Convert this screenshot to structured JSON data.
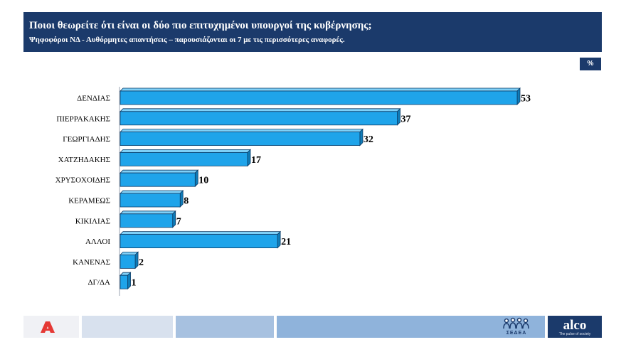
{
  "header": {
    "title": "Ποιοι θεωρείτε ότι είναι οι δύο πιο επιτυχημένοι υπουργοί της κυβέρνησης;",
    "subtitle": "Ψηφοφόροι ΝΔ - Αυθόρμητες απαντήσεις – παρουσιάζονται οι 7 με τις περισσότερες αναφορές."
  },
  "unit_badge": "%",
  "chart_data": {
    "type": "bar",
    "orientation": "horizontal",
    "categories": [
      "ΔΕΝΔΙΑΣ",
      "ΠΙΕΡΡΑΚΑΚΗΣ",
      "ΓΕΩΡΓΙΑΔΗΣ",
      "ΧΑΤΖΗΔΑΚΗΣ",
      "ΧΡΥΣΟΧΟΙΔΗΣ",
      "ΚΕΡΑΜΕΩΣ",
      "ΚΙΚΙΛΙΑΣ",
      "ΑΛΛΟΙ",
      "ΚΑΝΕΝΑΣ",
      "ΔΓ/ΔΑ"
    ],
    "values": [
      53,
      37,
      32,
      17,
      10,
      8,
      7,
      21,
      2,
      1
    ],
    "data_labels": [
      "53",
      "37",
      "32",
      "17",
      "10",
      "8",
      "7",
      "21",
      "2",
      "1"
    ],
    "xlim": [
      0,
      53
    ],
    "grid": false,
    "legend": "none",
    "bar_color": "#1fa4ea"
  },
  "footer": {
    "sedea_label": "ΣΕΔΕΑ",
    "alco_logo": "alco",
    "alco_tagline": "The pulse of society"
  }
}
